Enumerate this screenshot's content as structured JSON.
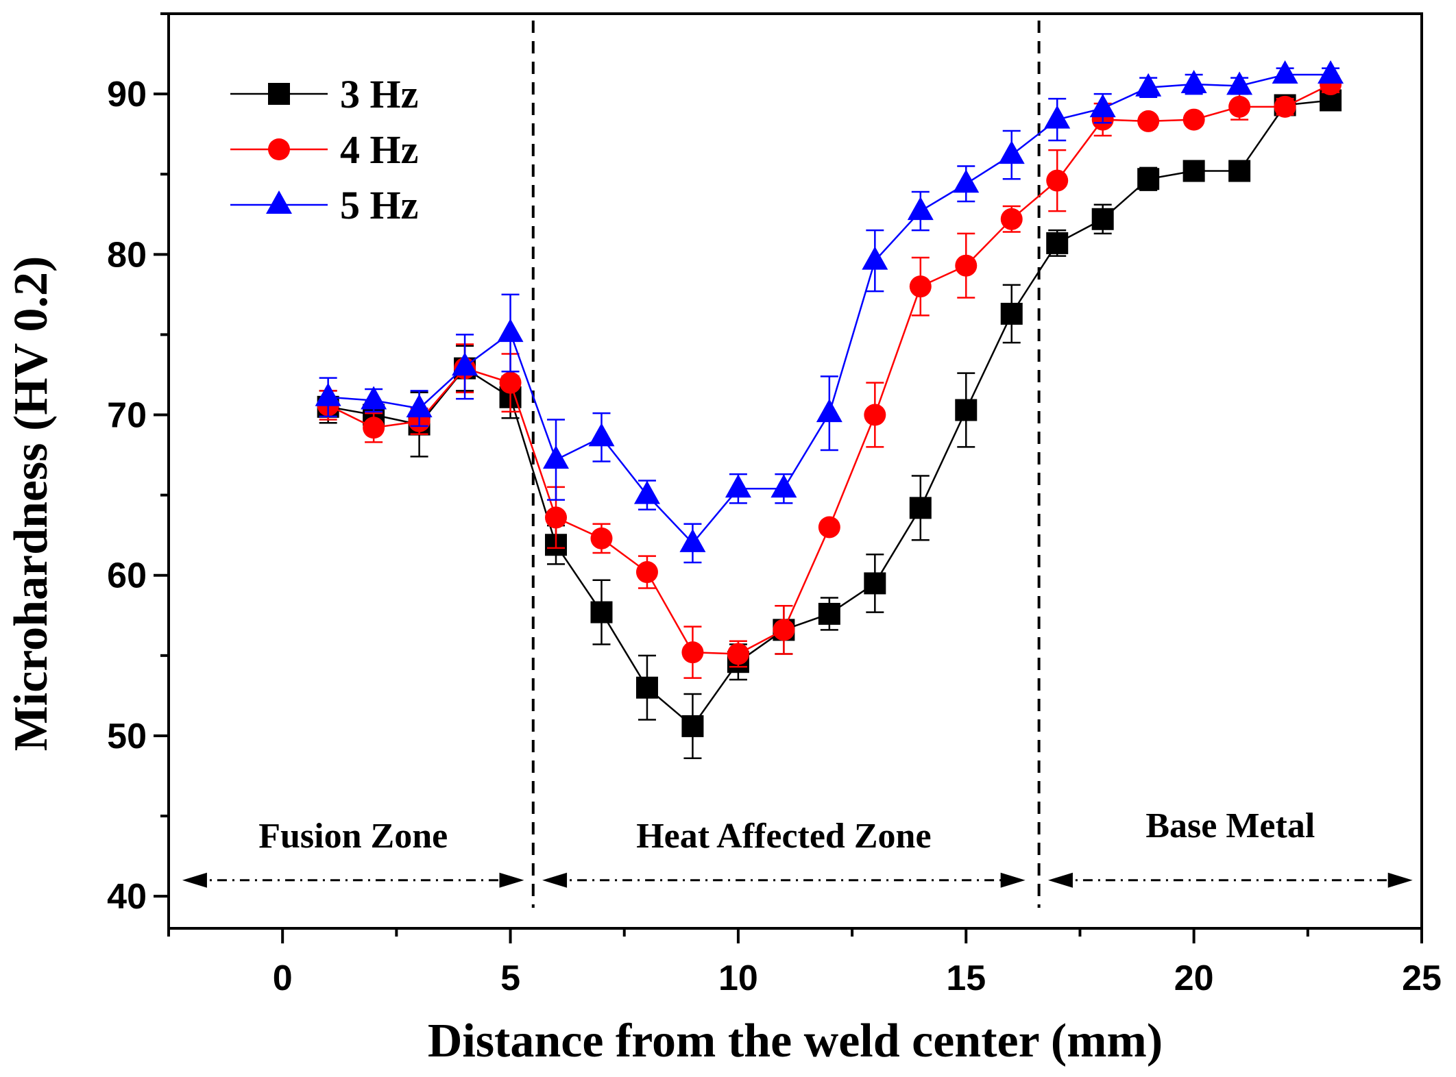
{
  "chart_data": {
    "type": "line",
    "title": "",
    "xlabel": "Distance from the weld center (mm)",
    "ylabel": "Microhardness (HV 0.2)",
    "xlim": [
      -2.5,
      25
    ],
    "ylim": [
      38,
      95
    ],
    "x_ticks": [
      0,
      5,
      10,
      15,
      20,
      25
    ],
    "y_ticks": [
      40,
      50,
      60,
      70,
      80,
      90
    ],
    "x": [
      1,
      2,
      3,
      4,
      5,
      6,
      7,
      8,
      9,
      10,
      11,
      12,
      13,
      14,
      15,
      16,
      17,
      18,
      19,
      20,
      21,
      22,
      23
    ],
    "series": [
      {
        "name": "3 Hz",
        "color": "#000000",
        "marker": "square",
        "values": [
          70.5,
          70.0,
          69.4,
          72.9,
          71.1,
          61.9,
          57.7,
          53.0,
          50.6,
          54.6,
          56.6,
          57.6,
          59.5,
          64.2,
          70.3,
          76.3,
          80.7,
          82.2,
          84.7,
          85.2,
          85.2,
          89.3,
          89.6
        ],
        "errors": [
          1.0,
          0.8,
          2.0,
          1.4,
          1.3,
          1.2,
          2.0,
          2.0,
          2.0,
          1.1,
          1.5,
          1.0,
          1.8,
          2.0,
          2.3,
          1.8,
          0.8,
          0.9,
          0.7,
          0.4,
          0.4,
          0.5,
          0.5
        ]
      },
      {
        "name": "4 Hz",
        "color": "#ff0000",
        "marker": "circle",
        "values": [
          70.6,
          69.2,
          69.6,
          72.9,
          72.0,
          63.6,
          62.3,
          60.2,
          55.2,
          55.1,
          56.6,
          63.0,
          70.0,
          78.0,
          79.3,
          82.2,
          84.6,
          88.4,
          88.3,
          88.4,
          89.2,
          89.2,
          90.6
        ],
        "errors": [
          0.9,
          0.9,
          0.8,
          1.5,
          1.8,
          1.9,
          0.9,
          1.0,
          1.6,
          0.8,
          1.5,
          0.0,
          2.0,
          1.8,
          2.0,
          0.8,
          1.9,
          1.0,
          0.0,
          0.0,
          0.8,
          0.5,
          0.5
        ]
      },
      {
        "name": "5 Hz",
        "color": "#0000ff",
        "marker": "triangle",
        "values": [
          71.1,
          70.9,
          70.4,
          73.0,
          75.1,
          67.2,
          68.6,
          65.0,
          62.0,
          65.4,
          65.4,
          70.1,
          79.6,
          82.7,
          84.4,
          86.2,
          88.4,
          89.1,
          90.4,
          90.6,
          90.5,
          91.2,
          91.2
        ],
        "errors": [
          1.2,
          0.7,
          1.1,
          2.0,
          2.4,
          2.5,
          1.5,
          0.9,
          1.2,
          0.9,
          0.9,
          2.3,
          1.9,
          1.2,
          1.1,
          1.5,
          1.3,
          0.9,
          0.6,
          0.6,
          0.5,
          0.4,
          0.4
        ]
      }
    ],
    "zone_boundaries": [
      5.5,
      16.6
    ],
    "zones": [
      {
        "label": "Fusion Zone",
        "x_from": -2.2,
        "x_to": 5.3
      },
      {
        "label": "Heat Affected Zone",
        "x_from": 5.7,
        "x_to": 16.3
      },
      {
        "label": "Base Metal",
        "x_from": 16.8,
        "x_to": 24.8
      }
    ],
    "legend_position": "top-left",
    "grid": false
  }
}
